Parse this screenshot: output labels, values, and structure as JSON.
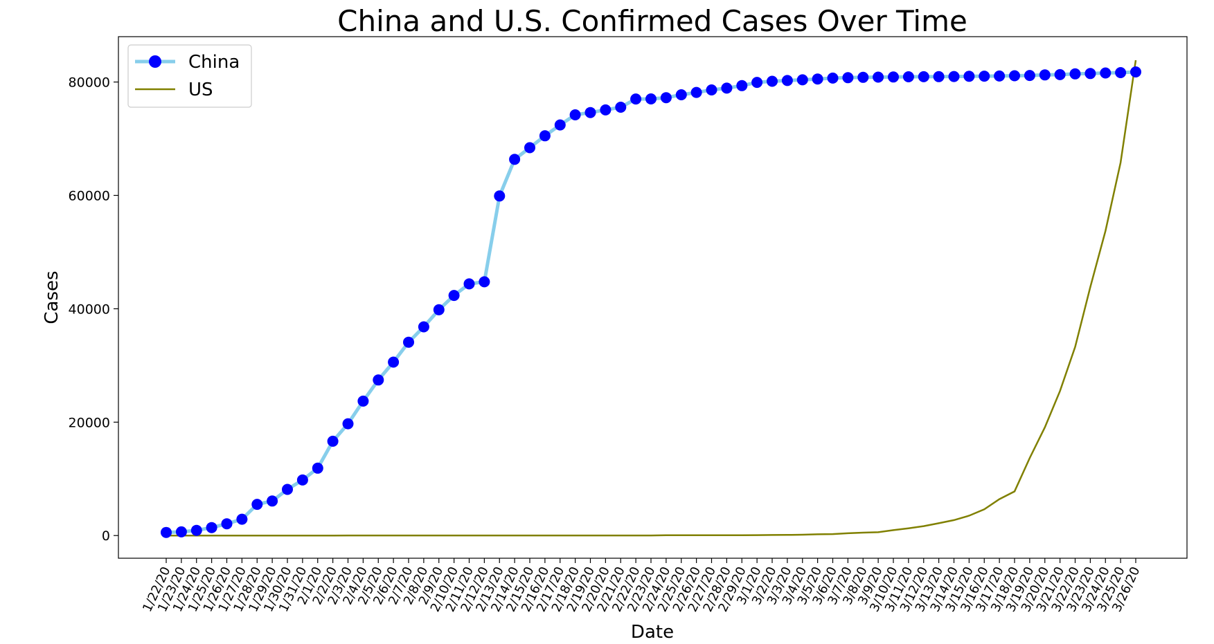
{
  "chart_data": {
    "type": "line",
    "title": "China and U.S. Confirmed Cases Over Time",
    "xlabel": "Date",
    "ylabel": "Cases",
    "ylim": [
      -4000,
      88000
    ],
    "yticks": [
      0,
      20000,
      40000,
      60000,
      80000
    ],
    "legend_position": "top-left",
    "grid": false,
    "x": [
      "1/22/20",
      "1/23/20",
      "1/24/20",
      "1/25/20",
      "1/26/20",
      "1/27/20",
      "1/28/20",
      "1/29/20",
      "1/30/20",
      "1/31/20",
      "2/1/20",
      "2/2/20",
      "2/3/20",
      "2/4/20",
      "2/5/20",
      "2/6/20",
      "2/7/20",
      "2/8/20",
      "2/9/20",
      "2/10/20",
      "2/11/20",
      "2/12/20",
      "2/13/20",
      "2/14/20",
      "2/15/20",
      "2/16/20",
      "2/17/20",
      "2/18/20",
      "2/19/20",
      "2/20/20",
      "2/21/20",
      "2/22/20",
      "2/23/20",
      "2/24/20",
      "2/25/20",
      "2/26/20",
      "2/27/20",
      "2/28/20",
      "2/29/20",
      "3/1/20",
      "3/2/20",
      "3/3/20",
      "3/4/20",
      "3/5/20",
      "3/6/20",
      "3/7/20",
      "3/8/20",
      "3/9/20",
      "3/10/20",
      "3/11/20",
      "3/12/20",
      "3/13/20",
      "3/14/20",
      "3/15/20",
      "3/16/20",
      "3/17/20",
      "3/18/20",
      "3/19/20",
      "3/20/20",
      "3/21/20",
      "3/22/20",
      "3/23/20",
      "3/24/20",
      "3/25/20",
      "3/26/20"
    ],
    "series": [
      {
        "name": "China",
        "line_color": "#87ceeb",
        "marker_color": "#0000ff",
        "values": [
          548,
          643,
          920,
          1406,
          2075,
          2877,
          5509,
          6087,
          8141,
          9802,
          11891,
          16630,
          19716,
          23707,
          27440,
          30587,
          34110,
          36814,
          39829,
          42354,
          44386,
          44759,
          59895,
          66358,
          68413,
          70513,
          72434,
          74211,
          74619,
          75077,
          75550,
          77001,
          77022,
          77241,
          77754,
          78166,
          78600,
          78928,
          79356,
          79932,
          80136,
          80261,
          80386,
          80537,
          80690,
          80770,
          80823,
          80860,
          80887,
          80921,
          80932,
          80945,
          80977,
          81003,
          81033,
          81058,
          81102,
          81156,
          81250,
          81305,
          81435,
          81498,
          81591,
          81661,
          81782
        ]
      },
      {
        "name": "US",
        "line_color": "#808000",
        "values": [
          1,
          1,
          2,
          2,
          5,
          5,
          5,
          5,
          5,
          7,
          8,
          8,
          11,
          11,
          11,
          11,
          11,
          11,
          11,
          11,
          12,
          12,
          13,
          13,
          13,
          13,
          13,
          13,
          13,
          13,
          15,
          15,
          15,
          51,
          51,
          57,
          58,
          60,
          68,
          74,
          98,
          118,
          149,
          217,
          262,
          402,
          518,
          583,
          959,
          1281,
          1663,
          2179,
          2727,
          3499,
          4632,
          6421,
          7783,
          13677,
          19100,
          25489,
          33276,
          43847,
          53740,
          65778,
          83836
        ]
      }
    ]
  }
}
